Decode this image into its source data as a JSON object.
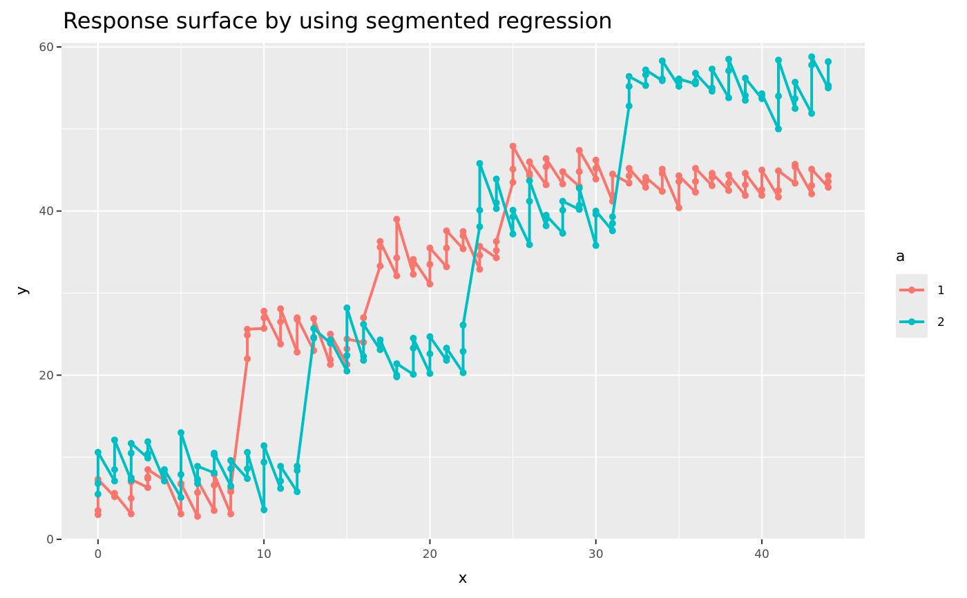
{
  "chart_data": {
    "type": "line",
    "title": "Response surface by using segmented regression",
    "xlabel": "x",
    "ylabel": "y",
    "xlim": [
      -2.2,
      46.2
    ],
    "ylim": [
      0,
      60.5
    ],
    "xticks": [
      0,
      10,
      20,
      30,
      40
    ],
    "yticks": [
      0,
      20,
      40,
      60
    ],
    "grid": true,
    "legend": {
      "title": "a",
      "placement": "right"
    },
    "series": [
      {
        "name": "1",
        "color": "#F8766D",
        "x": [
          0,
          0,
          0,
          0,
          1,
          1,
          2,
          2,
          2,
          2,
          3,
          3,
          3,
          3,
          4,
          4,
          5,
          5,
          5,
          6,
          6,
          6,
          7,
          7,
          7,
          8,
          8,
          8,
          9,
          9,
          9,
          10,
          10,
          10,
          11,
          11,
          11,
          12,
          12,
          12,
          13,
          13,
          13,
          14,
          14,
          14,
          15,
          15,
          15,
          16,
          16,
          16,
          17,
          17,
          17,
          18,
          18,
          18,
          19,
          19,
          19,
          20,
          20,
          20,
          21,
          21,
          21,
          22,
          22,
          22,
          23,
          23,
          23,
          24,
          24,
          24,
          25,
          25,
          25,
          26,
          26,
          26,
          27,
          27,
          27,
          28,
          28,
          28,
          29,
          29,
          29,
          30,
          30,
          30,
          31,
          31,
          31,
          32,
          32,
          32,
          33,
          33,
          33,
          34,
          34,
          34,
          35,
          35,
          35,
          36,
          36,
          36,
          37,
          37,
          37,
          38,
          38,
          38,
          39,
          39,
          39,
          40,
          40,
          40,
          41,
          41,
          41,
          42,
          42,
          42,
          43,
          43,
          43,
          44,
          44,
          44
        ],
        "values": [
          3.0,
          3.5,
          7.2,
          7.3,
          5.2,
          5.6,
          3.1,
          5.0,
          7.0,
          7.3,
          6.3,
          7.4,
          7.6,
          8.5,
          7.2,
          7.8,
          3.1,
          6.7,
          6.8,
          2.8,
          5.7,
          7.2,
          3.5,
          6.6,
          7.9,
          3.1,
          5.8,
          6.2,
          22.0,
          24.9,
          25.6,
          25.7,
          27.0,
          27.8,
          23.8,
          26.5,
          28.1,
          22.8,
          26.8,
          27.0,
          23.0,
          24.6,
          26.9,
          21.3,
          21.9,
          25.0,
          21.3,
          23.2,
          24.4,
          24.0,
          27.0,
          27.0,
          33.3,
          35.6,
          36.3,
          32.1,
          34.3,
          39.0,
          32.3,
          33.5,
          34.1,
          31.1,
          33.5,
          35.5,
          33.2,
          35.5,
          37.6,
          35.4,
          37.0,
          37.5,
          32.9,
          34.6,
          35.7,
          34.3,
          35.2,
          36.3,
          43.5,
          45.1,
          47.9,
          44.3,
          44.6,
          46.0,
          43.2,
          45.4,
          46.4,
          43.3,
          44.8,
          44.8,
          43.0,
          44.8,
          47.4,
          43.9,
          45.2,
          46.2,
          41.2,
          41.9,
          44.5,
          43.4,
          44.3,
          45.2,
          42.9,
          43.6,
          44.1,
          42.4,
          44.6,
          45.1,
          40.4,
          43.6,
          44.3,
          42.3,
          43.6,
          45.2,
          43.1,
          44.1,
          44.6,
          42.5,
          43.4,
          44.4,
          41.9,
          43.2,
          44.6,
          41.9,
          42.6,
          45.0,
          41.7,
          42.5,
          44.9,
          43.4,
          45.4,
          45.7,
          42.1,
          43.1,
          45.1,
          42.9,
          43.6,
          44.3
        ]
      },
      {
        "name": "2",
        "color": "#00BFC4",
        "x": [
          0,
          0,
          0,
          1,
          1,
          1,
          2,
          2,
          2,
          2,
          3,
          3,
          3,
          4,
          4,
          4,
          5,
          5,
          5,
          6,
          6,
          6,
          7,
          7,
          7,
          8,
          8,
          8,
          9,
          9,
          9,
          10,
          10,
          10,
          11,
          11,
          11,
          12,
          12,
          12,
          13,
          13,
          13,
          14,
          14,
          14,
          15,
          15,
          15,
          16,
          16,
          16,
          17,
          17,
          17,
          18,
          18,
          18,
          19,
          19,
          19,
          20,
          20,
          20,
          21,
          21,
          21,
          22,
          22,
          22,
          23,
          23,
          23,
          24,
          24,
          24,
          25,
          25,
          25,
          26,
          26,
          26,
          27,
          27,
          27,
          28,
          28,
          28,
          29,
          29,
          29,
          30,
          30,
          30,
          31,
          31,
          31,
          32,
          32,
          32,
          33,
          33,
          33,
          34,
          34,
          34,
          35,
          35,
          35,
          36,
          36,
          36,
          37,
          37,
          37,
          38,
          38,
          38,
          39,
          39,
          39,
          40,
          40,
          40,
          41,
          41,
          41,
          42,
          42,
          42,
          43,
          43,
          43,
          44,
          44,
          44
        ],
        "values": [
          5.5,
          6.8,
          10.6,
          7.1,
          8.5,
          12.1,
          7.2,
          7.5,
          10.5,
          11.7,
          9.9,
          10.4,
          11.9,
          7.1,
          8.1,
          8.5,
          5.1,
          7.9,
          13.0,
          6.8,
          7.3,
          8.9,
          8.1,
          10.3,
          10.5,
          6.5,
          8.6,
          9.6,
          7.4,
          8.6,
          10.6,
          3.6,
          9.4,
          11.4,
          6.2,
          7.1,
          8.9,
          5.8,
          8.4,
          8.9,
          24.5,
          24.6,
          25.7,
          23.9,
          24.2,
          24.3,
          20.5,
          22.4,
          28.2,
          21.8,
          22.3,
          26.2,
          23.1,
          23.8,
          24.3,
          19.8,
          20.0,
          21.4,
          20.1,
          23.3,
          24.5,
          20.2,
          22.6,
          24.7,
          21.8,
          22.1,
          23.3,
          20.3,
          22.9,
          26.1,
          38.1,
          40.1,
          45.8,
          40.3,
          41.0,
          43.9,
          37.2,
          39.3,
          40.1,
          35.9,
          41.2,
          43.7,
          38.2,
          39.0,
          39.5,
          37.3,
          40.1,
          41.2,
          40.2,
          40.7,
          42.8,
          35.8,
          39.6,
          40.0,
          37.6,
          38.5,
          39.3,
          52.8,
          55.2,
          56.4,
          55.3,
          56.6,
          57.2,
          55.9,
          56.1,
          58.3,
          55.2,
          55.7,
          56.1,
          55.5,
          55.8,
          56.8,
          54.6,
          55.0,
          57.3,
          53.8,
          57.1,
          58.5,
          53.5,
          54.1,
          56.2,
          53.7,
          54.1,
          54.3,
          50.0,
          54.0,
          58.4,
          52.5,
          53.7,
          55.7,
          51.9,
          57.8,
          58.8,
          55.0,
          55.3,
          58.2
        ]
      }
    ]
  }
}
